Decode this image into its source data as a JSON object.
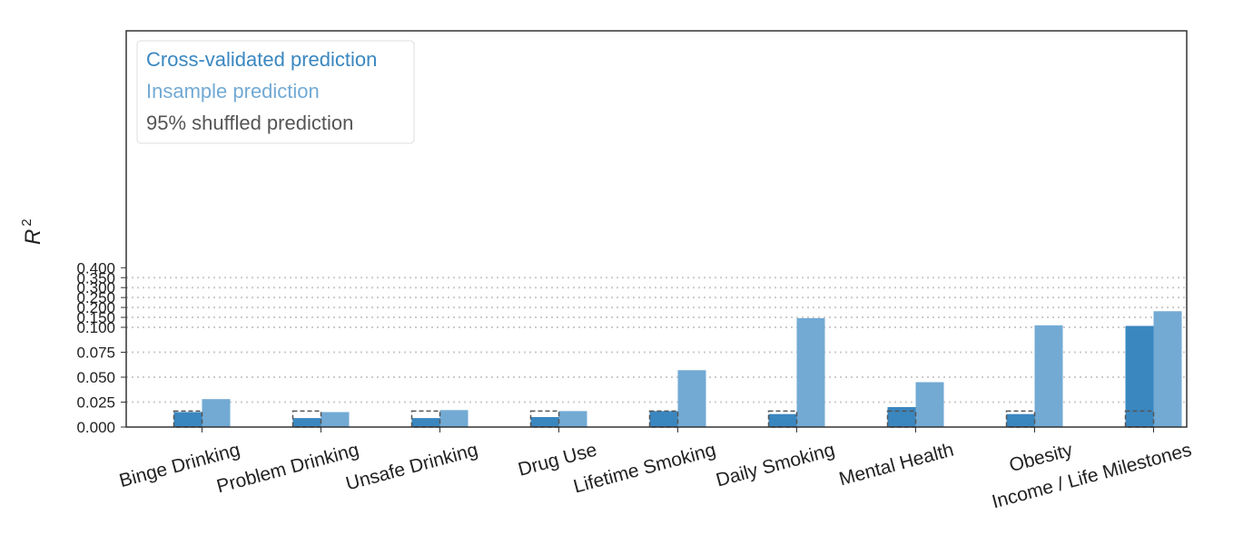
{
  "chart_data": {
    "type": "bar",
    "categories": [
      "Binge Drinking",
      "Problem Drinking",
      "Unsafe Drinking",
      "Drug Use",
      "Lifetime Smoking",
      "Daily Smoking",
      "Mental Health",
      "Obesity",
      "Income / Life Milestones"
    ],
    "series": [
      {
        "name": "Cross-validated prediction",
        "color": "#3a87c0",
        "values": [
          0.015,
          0.009,
          0.009,
          0.01,
          0.016,
          0.013,
          0.02,
          0.013,
          0.107
        ]
      },
      {
        "name": "Insample prediction",
        "color": "#72aad4",
        "values": [
          0.028,
          0.015,
          0.017,
          0.016,
          0.057,
          0.146,
          0.045,
          0.11,
          0.181
        ]
      },
      {
        "name": "95% shuffled prediction",
        "color": "#555555",
        "style": "dashed-outline",
        "values": [
          0.016,
          0.016,
          0.016,
          0.016,
          0.016,
          0.016,
          0.016,
          0.016,
          0.016
        ]
      }
    ],
    "ylabel": "R",
    "ylabel_superscript": "2",
    "ylim": [
      0,
      0.4
    ],
    "yticks": [
      "0.000",
      "0.025",
      "0.050",
      "0.075",
      "0.100",
      "0.150",
      "0.200",
      "0.250",
      "0.300",
      "0.350",
      "0.400"
    ],
    "yscale": "piecewise-linear (0–0.1 expanded)",
    "grid": "horizontal dotted",
    "legend_position": "top-left"
  }
}
